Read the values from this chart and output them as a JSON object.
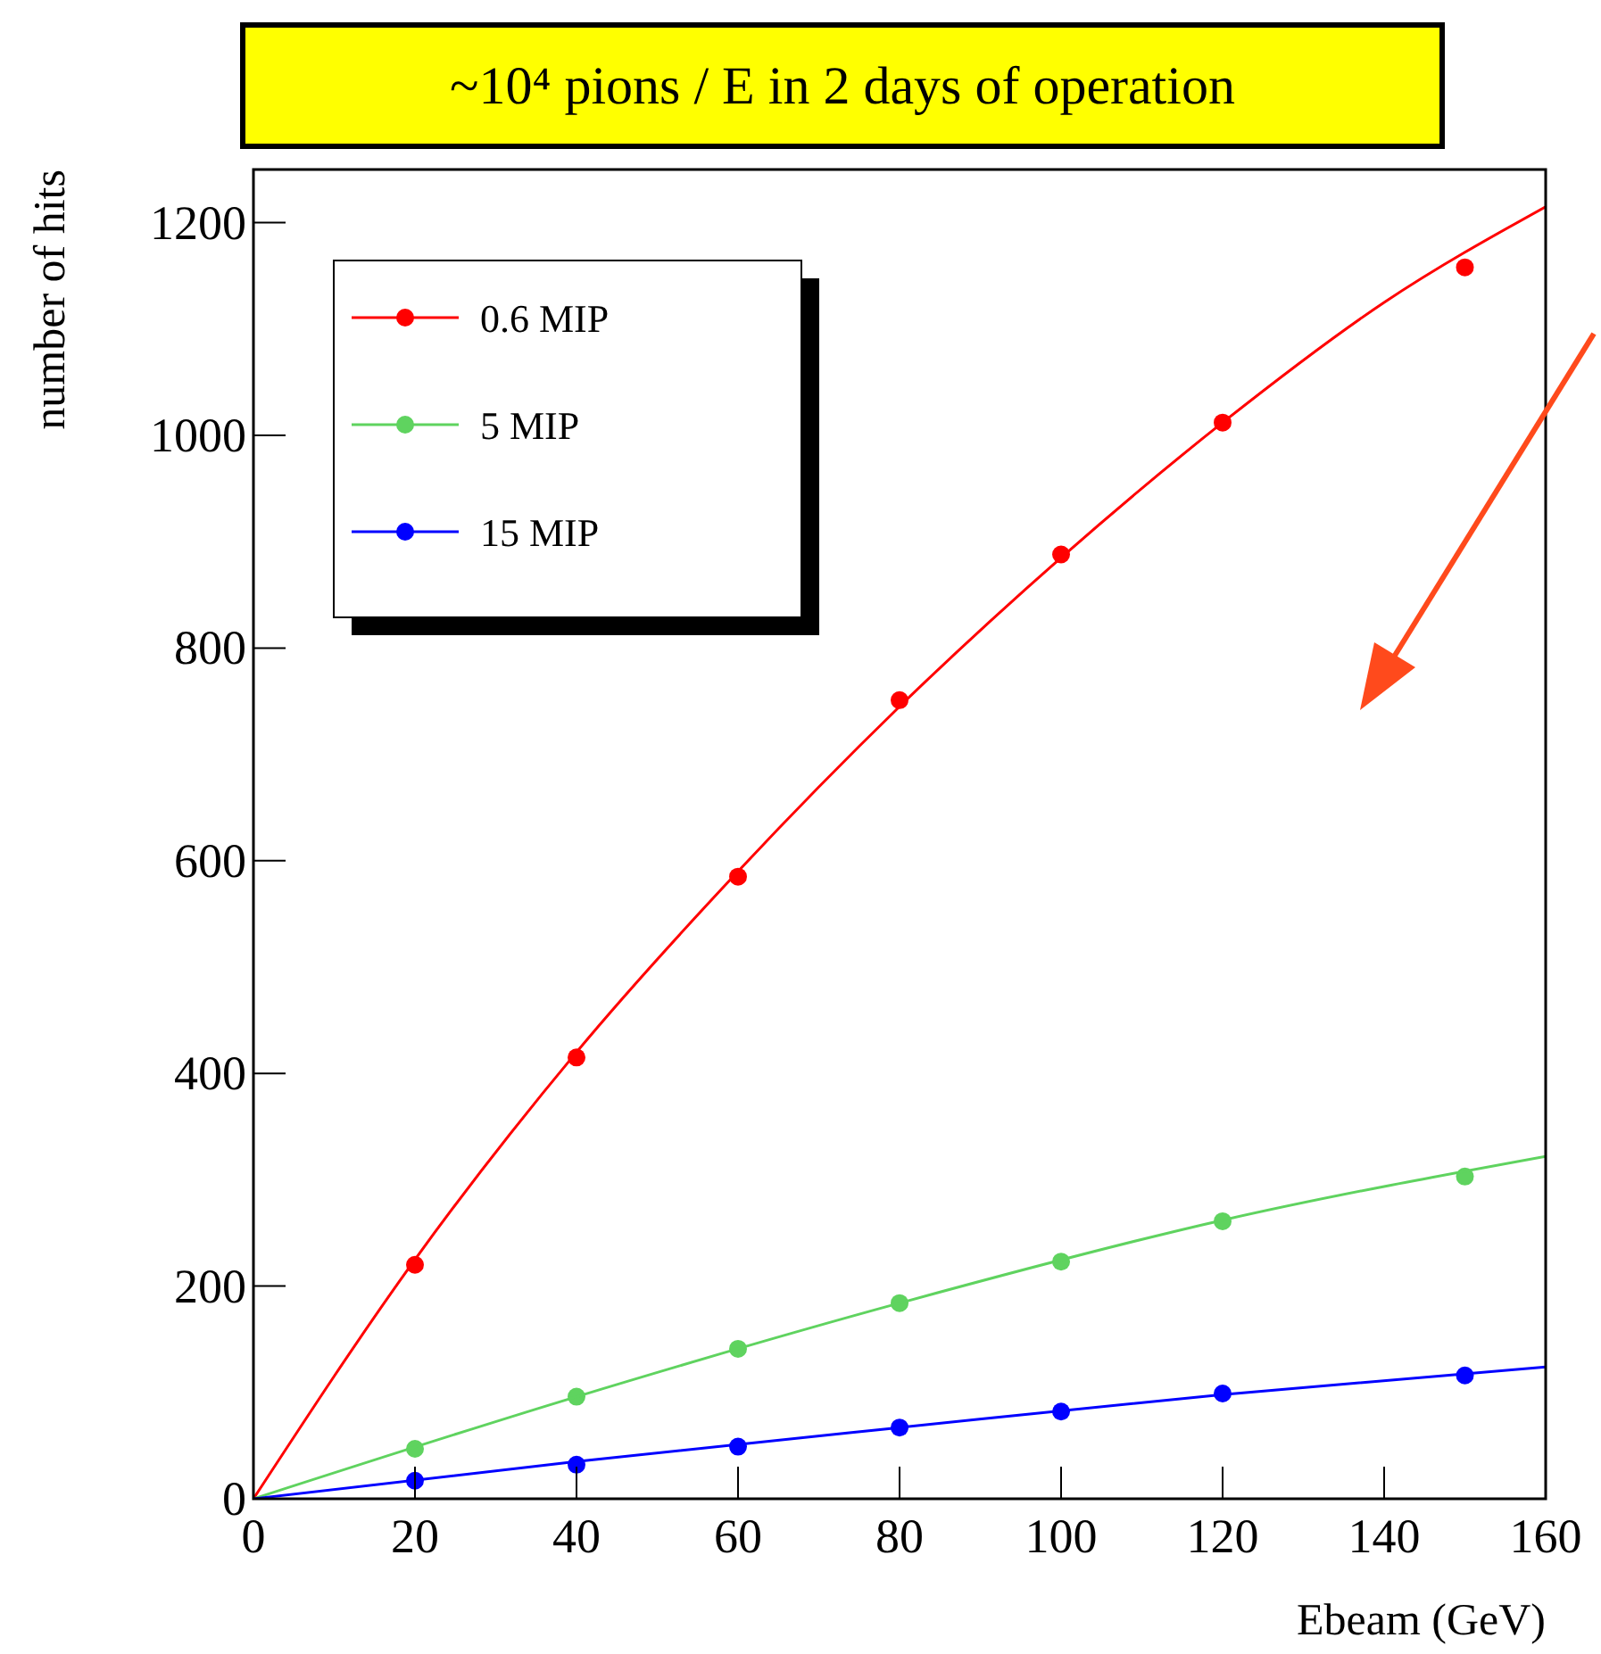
{
  "chart_data": {
    "type": "scatter",
    "title": "~10⁴ pions / E in 2 days of operation",
    "xlabel": "Ebeam (GeV)",
    "ylabel": "number of hits",
    "xlim": [
      0,
      160
    ],
    "xticks": [
      0,
      20,
      40,
      60,
      80,
      100,
      120,
      140,
      160
    ],
    "ylim": [
      0,
      1250
    ],
    "yticks": [
      0,
      200,
      400,
      600,
      800,
      1000,
      1200
    ],
    "grid": false,
    "legend": "top left",
    "marker": "circle",
    "line_style": "solid",
    "series": [
      {
        "name": "0.6 MIP",
        "color": "#ff0000",
        "x": [
          20,
          40,
          60,
          80,
          100,
          120,
          150
        ],
        "values": [
          220,
          415,
          585,
          751,
          888,
          1012,
          1158
        ]
      },
      {
        "name": "5 MIP",
        "color": "#5fd35f",
        "x": [
          20,
          40,
          60,
          80,
          100,
          120,
          150
        ],
        "values": [
          47,
          96,
          141,
          184,
          223,
          261,
          303
        ]
      },
      {
        "name": "15 MIP",
        "color": "#0000ff",
        "x": [
          20,
          40,
          60,
          80,
          100,
          120,
          150
        ],
        "values": [
          17,
          32,
          49,
          67,
          82,
          99,
          116
        ]
      },
      {
        "color": "#ff0000",
        "type": "line",
        "marker": "none",
        "x": [
          0,
          20,
          40,
          60,
          80,
          100,
          120,
          140,
          160
        ],
        "values": [
          0,
          225,
          420,
          590,
          745,
          885,
          1012,
          1125,
          1215
        ]
      },
      {
        "color": "#5fd35f",
        "type": "line",
        "marker": "none",
        "x": [
          0,
          40,
          80,
          120,
          160
        ],
        "values": [
          0,
          96,
          184,
          262,
          322
        ]
      },
      {
        "color": "#0000ff",
        "type": "line",
        "marker": "none",
        "x": [
          0,
          40,
          80,
          120,
          160
        ],
        "values": [
          0,
          35,
          67,
          98,
          124
        ]
      }
    ]
  }
}
